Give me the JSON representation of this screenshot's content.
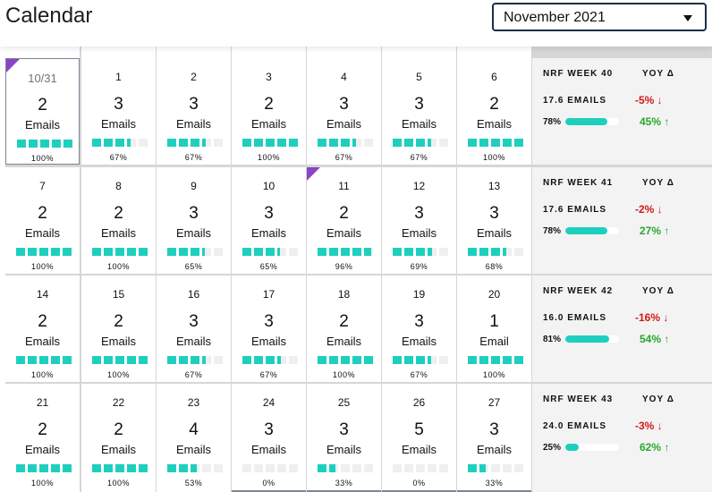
{
  "header": {
    "title": "Calendar",
    "month_select": {
      "value": "November 2021"
    }
  },
  "colors": {
    "fill": "#1fcfbe",
    "flag": "#8b43c7",
    "negative": "#d11a1a",
    "positive": "#27a82b"
  },
  "weeks": [
    {
      "days": [
        {
          "date": "10/31",
          "count": "2",
          "unit": "Emails",
          "pct": "100%",
          "fill": 1.0,
          "flag": true,
          "muted": true,
          "first": true
        },
        {
          "date": "1",
          "count": "3",
          "unit": "Emails",
          "pct": "67%",
          "fill": 0.67
        },
        {
          "date": "2",
          "count": "3",
          "unit": "Emails",
          "pct": "67%",
          "fill": 0.67
        },
        {
          "date": "3",
          "count": "2",
          "unit": "Emails",
          "pct": "100%",
          "fill": 1.0
        },
        {
          "date": "4",
          "count": "3",
          "unit": "Emails",
          "pct": "67%",
          "fill": 0.67
        },
        {
          "date": "5",
          "count": "3",
          "unit": "Emails",
          "pct": "67%",
          "fill": 0.67
        },
        {
          "date": "6",
          "count": "2",
          "unit": "Emails",
          "pct": "100%",
          "fill": 1.0
        }
      ],
      "summary": {
        "week": "NRF WEEK 40",
        "yoy": "YOY Δ",
        "emails": "17.6 EMAILS",
        "delta_emails": "-5% ↓",
        "rate": "78%",
        "rate_fill": 0.78,
        "delta_rate": "45% ↑"
      }
    },
    {
      "days": [
        {
          "date": "7",
          "count": "2",
          "unit": "Emails",
          "pct": "100%",
          "fill": 1.0
        },
        {
          "date": "8",
          "count": "2",
          "unit": "Emails",
          "pct": "100%",
          "fill": 1.0
        },
        {
          "date": "9",
          "count": "3",
          "unit": "Emails",
          "pct": "65%",
          "fill": 0.65
        },
        {
          "date": "10",
          "count": "3",
          "unit": "Emails",
          "pct": "65%",
          "fill": 0.65
        },
        {
          "date": "11",
          "count": "2",
          "unit": "Emails",
          "pct": "96%",
          "fill": 0.96,
          "flag": true
        },
        {
          "date": "12",
          "count": "3",
          "unit": "Emails",
          "pct": "69%",
          "fill": 0.69
        },
        {
          "date": "13",
          "count": "3",
          "unit": "Emails",
          "pct": "68%",
          "fill": 0.68
        }
      ],
      "summary": {
        "week": "NRF WEEK 41",
        "yoy": "YOY Δ",
        "emails": "17.6 EMAILS",
        "delta_emails": "-2% ↓",
        "rate": "78%",
        "rate_fill": 0.78,
        "delta_rate": "27% ↑"
      }
    },
    {
      "days": [
        {
          "date": "14",
          "count": "2",
          "unit": "Emails",
          "pct": "100%",
          "fill": 1.0
        },
        {
          "date": "15",
          "count": "2",
          "unit": "Emails",
          "pct": "100%",
          "fill": 1.0
        },
        {
          "date": "16",
          "count": "3",
          "unit": "Emails",
          "pct": "67%",
          "fill": 0.67
        },
        {
          "date": "17",
          "count": "3",
          "unit": "Emails",
          "pct": "67%",
          "fill": 0.67
        },
        {
          "date": "18",
          "count": "2",
          "unit": "Emails",
          "pct": "100%",
          "fill": 1.0
        },
        {
          "date": "19",
          "count": "3",
          "unit": "Emails",
          "pct": "67%",
          "fill": 0.67
        },
        {
          "date": "20",
          "count": "1",
          "unit": "Email",
          "pct": "100%",
          "fill": 1.0
        }
      ],
      "summary": {
        "week": "NRF WEEK 42",
        "yoy": "YOY Δ",
        "emails": "16.0 EMAILS",
        "delta_emails": "-16% ↓",
        "rate": "81%",
        "rate_fill": 0.81,
        "delta_rate": "54% ↑"
      }
    },
    {
      "days": [
        {
          "date": "21",
          "count": "2",
          "unit": "Emails",
          "pct": "100%",
          "fill": 1.0
        },
        {
          "date": "22",
          "count": "2",
          "unit": "Emails",
          "pct": "100%",
          "fill": 1.0
        },
        {
          "date": "23",
          "count": "4",
          "unit": "Emails",
          "pct": "53%",
          "fill": 0.53
        },
        {
          "date": "24",
          "count": "3",
          "unit": "Emails",
          "pct": "0%",
          "fill": 0.0,
          "last": true
        },
        {
          "date": "25",
          "count": "3",
          "unit": "Emails",
          "pct": "33%",
          "fill": 0.33,
          "last": true
        },
        {
          "date": "26",
          "count": "5",
          "unit": "Emails",
          "pct": "0%",
          "fill": 0.0,
          "last": true
        },
        {
          "date": "27",
          "count": "3",
          "unit": "Emails",
          "pct": "33%",
          "fill": 0.33,
          "last": true
        }
      ],
      "summary": {
        "week": "NRF WEEK 43",
        "yoy": "YOY Δ",
        "emails": "24.0 EMAILS",
        "delta_emails": "-3% ↓",
        "rate": "25%",
        "rate_fill": 0.25,
        "delta_rate": "62% ↑"
      }
    }
  ]
}
